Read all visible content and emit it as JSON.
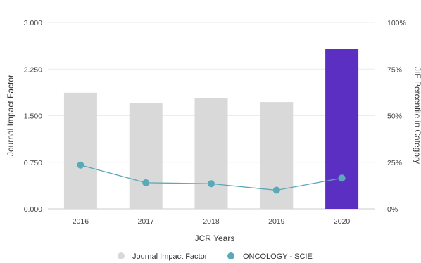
{
  "chart_data": {
    "type": "bar",
    "categories": [
      "2016",
      "2017",
      "2018",
      "2019",
      "2020"
    ],
    "series": [
      {
        "name": "Journal Impact Factor",
        "type": "bar",
        "axis": "left",
        "values": [
          1.87,
          1.7,
          1.78,
          1.72,
          2.58
        ],
        "color": "#d9d9d9",
        "highlight_color": "#5b2fc2",
        "highlight_category": "2020"
      },
      {
        "name": "ONCOLOGY - SCIE",
        "type": "line",
        "axis": "right",
        "values": [
          23.5,
          14.0,
          13.5,
          10.0,
          16.5
        ],
        "color": "#5aa9b8"
      }
    ],
    "xlabel": "JCR Years",
    "ylabel": "Journal Impact Factor",
    "y2label": "JIF Percentile in Category",
    "ylim": [
      0,
      3
    ],
    "y2lim": [
      0,
      100
    ],
    "yticks": [
      "0.000",
      "0.750",
      "1.500",
      "2.250",
      "3.000"
    ],
    "y2ticks": [
      "0%",
      "25%",
      "50%",
      "75%",
      "100%"
    ],
    "grid": true,
    "legend_position": "bottom"
  }
}
